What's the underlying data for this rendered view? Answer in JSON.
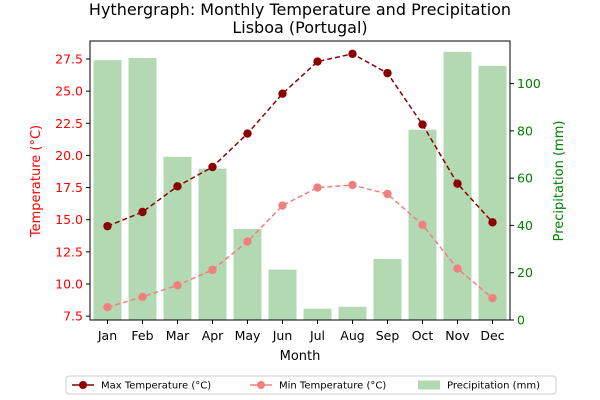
{
  "chart_data": {
    "type": "bar+line",
    "title": "Hythergraph: Monthly Temperature and Precipitation",
    "subtitle": "Lisboa (Portugal)",
    "xlabel": "Month",
    "ylabel_left": "Temperature (°C)",
    "ylabel_right": "Precipitation (mm)",
    "categories": [
      "Jan",
      "Feb",
      "Mar",
      "Apr",
      "May",
      "Jun",
      "Jul",
      "Aug",
      "Sep",
      "Oct",
      "Nov",
      "Dec"
    ],
    "ylim_left": [
      7.2,
      28.9
    ],
    "yticks_left": [
      "7.5",
      "10.0",
      "12.5",
      "15.0",
      "17.5",
      "20.0",
      "22.5",
      "25.0",
      "27.5"
    ],
    "ylim_right": [
      0,
      118
    ],
    "yticks_right": [
      "0",
      "20",
      "40",
      "60",
      "80",
      "100"
    ],
    "series": [
      {
        "name": "Max Temperature (°C)",
        "kind": "line",
        "axis": "left",
        "color": "#8b0000",
        "values": [
          14.5,
          15.6,
          17.6,
          19.1,
          21.7,
          24.8,
          27.3,
          27.9,
          26.4,
          22.4,
          17.8,
          14.8
        ]
      },
      {
        "name": "Min Temperature (°C)",
        "kind": "line",
        "axis": "left",
        "color": "#f08080",
        "values": [
          8.2,
          9.0,
          9.9,
          11.1,
          13.3,
          16.1,
          17.5,
          17.7,
          17.0,
          14.6,
          11.2,
          8.9
        ]
      },
      {
        "name": "Precipitation (mm)",
        "kind": "bar",
        "axis": "right",
        "color": "#b2d9b2",
        "values": [
          109.9,
          110.8,
          69.0,
          64.0,
          38.5,
          21.3,
          4.8,
          5.6,
          25.8,
          80.5,
          113.4,
          107.5
        ]
      }
    ],
    "left_axis_color": "#ff0000",
    "right_axis_color": "#008000",
    "legend_position": "bottom"
  }
}
